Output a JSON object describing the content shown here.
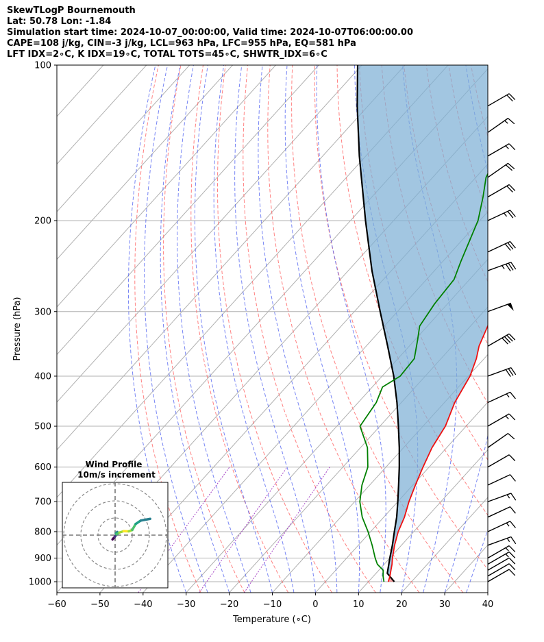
{
  "header": {
    "title": "SkewTLogP Bournemouth",
    "location": "Lat: 50.78   Lon: -1.84",
    "times": "Simulation start time: 2024-10-07_00:00:00, Valid time: 2024-10-07T06:00:00.00",
    "indices1": "CAPE=108 j/kg, CIN=-3 j/kg, LCL=963 hPa, LFC=955 hPa, EQ=581 hPa",
    "indices2": "LFT IDX=2∘C, K IDX=19∘C, TOTAL TOTS=45∘C, SHWTR_IDX=6∘C"
  },
  "chart_data": {
    "type": "skewt",
    "xlabel": "Temperature (∘C)",
    "ylabel": "Pressure (hPa)",
    "xlim": [
      -60,
      40
    ],
    "ylim": [
      1050,
      100
    ],
    "xticks": [
      "−60",
      "−50",
      "−40",
      "−30",
      "−20",
      "−10",
      "0",
      "10",
      "20",
      "30",
      "40"
    ],
    "yticks": [
      "100",
      "200",
      "300",
      "400",
      "500",
      "600",
      "700",
      "800",
      "900",
      "1000"
    ],
    "grid": true,
    "colors": {
      "temperature": "#ee1111",
      "dewpoint": "#008000",
      "parcel": "#000000",
      "cape_fill": "#7eb0d5",
      "cin_fill": "#f08080",
      "dry_adiabat": "#ff6b6b",
      "moist_adiabat": "#4a5cf0",
      "mixing_ratio": "#9b30c0"
    },
    "temperature": {
      "p": [
        1000,
        975,
        950,
        925,
        900,
        850,
        800,
        750,
        700,
        650,
        600,
        550,
        500,
        450,
        400,
        370,
        350,
        320,
        290,
        260,
        240,
        230,
        200,
        180,
        165,
        150,
        135,
        120,
        110,
        100
      ],
      "t": [
        14.6,
        13.8,
        12.8,
        11.8,
        10.6,
        8.4,
        6.4,
        4.8,
        2.6,
        0.6,
        -1.4,
        -3.4,
        -4.8,
        -7.6,
        -9.6,
        -11.8,
        -13.8,
        -16.0,
        -17.8,
        -19.8,
        -21.2,
        -21.2,
        -23.2,
        -25.8,
        -27.2,
        -28.8,
        -30.2,
        -29.4,
        -28.4,
        -30.8
      ]
    },
    "dewpoint": {
      "p": [
        1000,
        975,
        950,
        925,
        900,
        850,
        800,
        750,
        700,
        650,
        600,
        550,
        500,
        450,
        420,
        400,
        370,
        340,
        320,
        290,
        260,
        240,
        200,
        180,
        165,
        150,
        135,
        120,
        110,
        100
      ],
      "t": [
        13.6,
        12.2,
        11.0,
        8.4,
        6.6,
        3.2,
        -0.6,
        -5.0,
        -8.8,
        -11.8,
        -14.2,
        -18.4,
        -24.6,
        -25.8,
        -27.6,
        -25.8,
        -26.2,
        -29.4,
        -31.8,
        -33.0,
        -33.6,
        -35.8,
        -40.4,
        -44.2,
        -47.6,
        -49.6,
        -50.2,
        -51.4,
        -51.6,
        -52.4
      ]
    },
    "parcel": {
      "p": [
        1000,
        963,
        900,
        850,
        800,
        750,
        700,
        650,
        600,
        550,
        500,
        450,
        400,
        350,
        300,
        250,
        200,
        150,
        120,
        100
      ],
      "t": [
        16.0,
        12.6,
        10.0,
        7.9,
        5.5,
        3.0,
        0.0,
        -3.3,
        -6.9,
        -11.0,
        -15.7,
        -21.0,
        -27.3,
        -35.0,
        -44.0,
        -54.5,
        -66.5,
        -81.5,
        -92.5,
        -101.0
      ]
    },
    "wind_barbs": {
      "p": [
        1000,
        975,
        950,
        925,
        900,
        850,
        800,
        750,
        700,
        650,
        600,
        550,
        500,
        450,
        400,
        350,
        300,
        250,
        230,
        200,
        180,
        165,
        150,
        135,
        120
      ],
      "speed_kt": [
        10,
        10,
        10,
        15,
        15,
        15,
        15,
        10,
        15,
        10,
        10,
        10,
        15,
        15,
        30,
        40,
        50,
        35,
        30,
        25,
        20,
        20,
        15,
        15,
        20
      ],
      "dir_deg": [
        240,
        240,
        240,
        240,
        240,
        250,
        245,
        245,
        250,
        245,
        240,
        235,
        240,
        245,
        250,
        240,
        250,
        250,
        245,
        245,
        240,
        235,
        240,
        235,
        240
      ]
    },
    "hodograph": {
      "title": "Wind Profile",
      "subtitle": "10m/s increment",
      "rings_ms": [
        10,
        20,
        30
      ],
      "u": [
        -1.5,
        -0.2,
        0.8,
        1.2,
        0.5,
        0.8,
        2.5,
        5.0,
        8.0,
        10.0,
        12.0,
        15.0,
        20.5
      ],
      "v": [
        -2.5,
        -1.0,
        0.3,
        1.8,
        1.0,
        0.5,
        1.5,
        2.3,
        2.2,
        3.0,
        6.5,
        8.5,
        9.5
      ]
    }
  }
}
